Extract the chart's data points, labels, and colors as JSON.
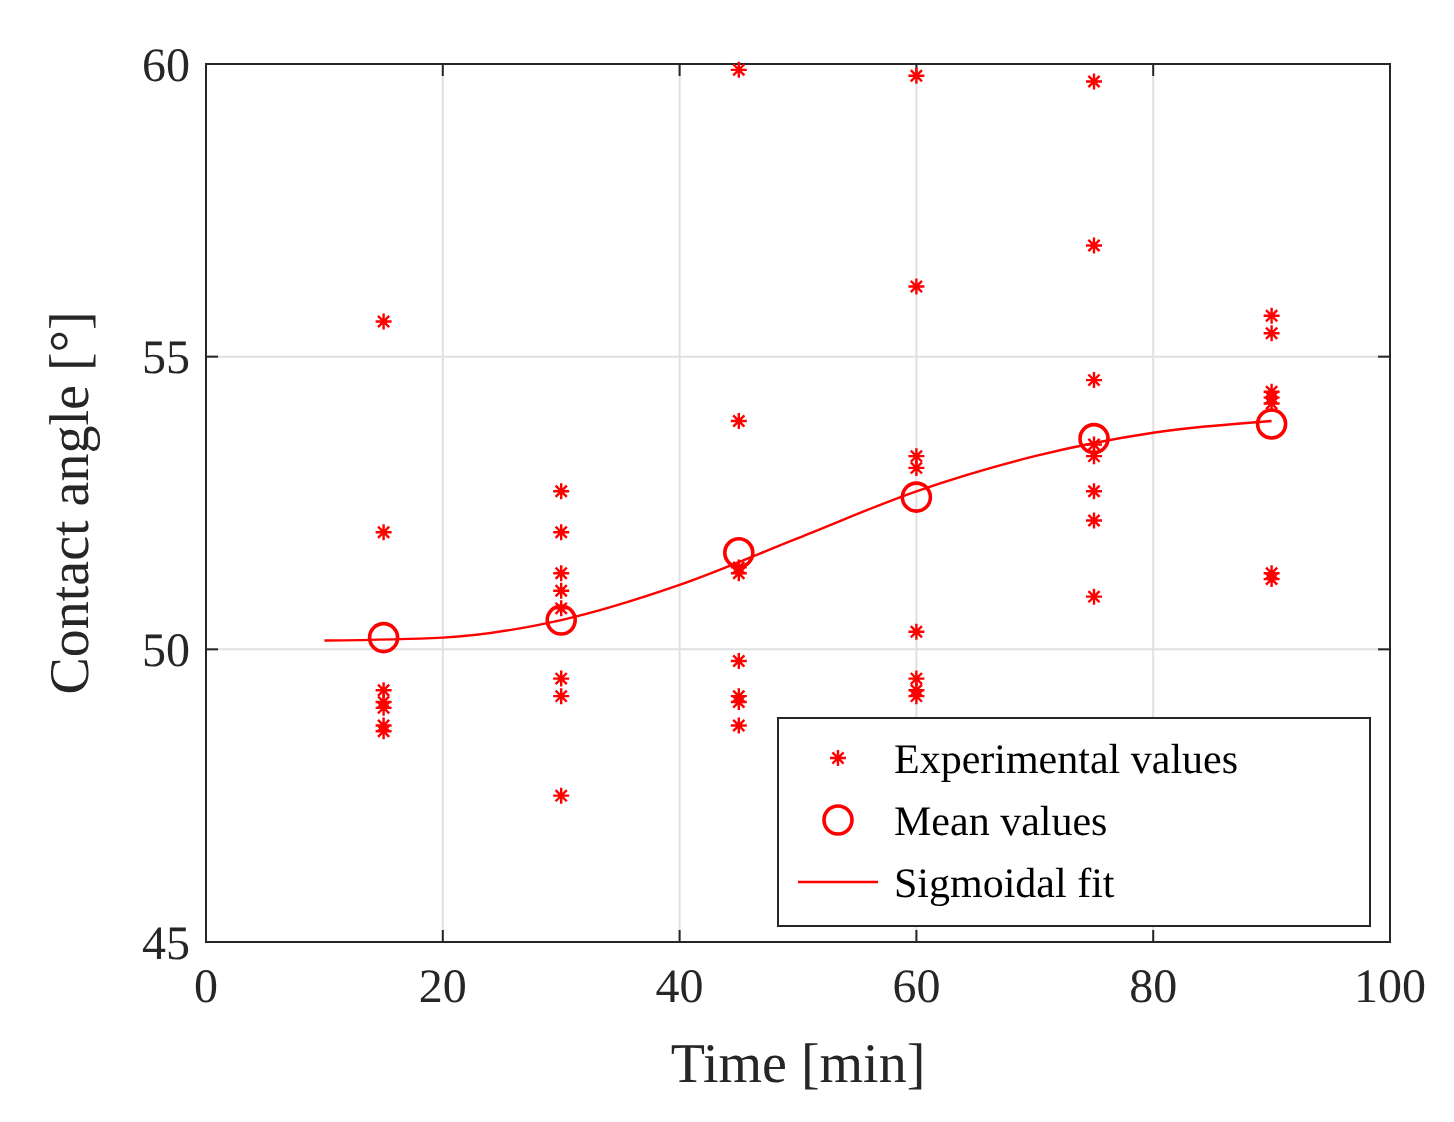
{
  "chart_data": {
    "type": "scatter",
    "xlabel": "Time [min]",
    "ylabel": "Contact angle [°]",
    "xlim": [
      0,
      100
    ],
    "xticks": [
      0,
      20,
      40,
      60,
      80,
      100
    ],
    "ylim": [
      45,
      60
    ],
    "yticks": [
      45,
      50,
      55,
      60
    ],
    "grid": true,
    "legend": "bottom right",
    "series": [
      {
        "name": "Experimental values",
        "marker": "cross",
        "color": "#ff0000",
        "x": [
          15,
          15,
          15,
          15,
          15,
          15,
          15,
          30,
          30,
          30,
          30,
          30,
          30,
          30,
          30,
          45,
          45,
          45,
          45,
          45,
          45,
          45,
          45,
          60,
          60,
          60,
          60,
          60,
          60,
          60,
          60,
          75,
          75,
          75,
          75,
          75,
          75,
          75,
          75,
          90,
          90,
          90,
          90,
          90,
          90,
          90
        ],
        "values": [
          55.6,
          52.0,
          49.3,
          49.1,
          49.0,
          48.7,
          48.6,
          52.7,
          52.0,
          51.3,
          51.0,
          50.7,
          49.5,
          49.2,
          47.5,
          59.9,
          53.9,
          51.4,
          51.3,
          49.8,
          49.2,
          49.1,
          48.7,
          59.8,
          56.2,
          53.3,
          53.1,
          50.3,
          49.5,
          49.3,
          49.2,
          59.7,
          56.9,
          54.6,
          53.5,
          53.3,
          52.7,
          52.2,
          50.9,
          55.7,
          55.4,
          54.4,
          54.3,
          54.2,
          51.3,
          51.2
        ]
      },
      {
        "name": "Mean values",
        "marker": "circle",
        "color": "#ff0000",
        "x": [
          15,
          30,
          45,
          60,
          75,
          90
        ],
        "values": [
          50.2,
          50.5,
          51.65,
          52.6,
          53.6,
          53.85
        ]
      },
      {
        "name": "Sigmoidal fit",
        "type": "line",
        "line_style": "solid",
        "color": "#ff0000",
        "x": [
          10,
          20,
          30,
          40,
          50,
          60,
          70,
          80,
          90
        ],
        "values": [
          50.15,
          50.2,
          50.5,
          51.1,
          51.9,
          52.7,
          53.3,
          53.7,
          53.9
        ]
      }
    ]
  }
}
